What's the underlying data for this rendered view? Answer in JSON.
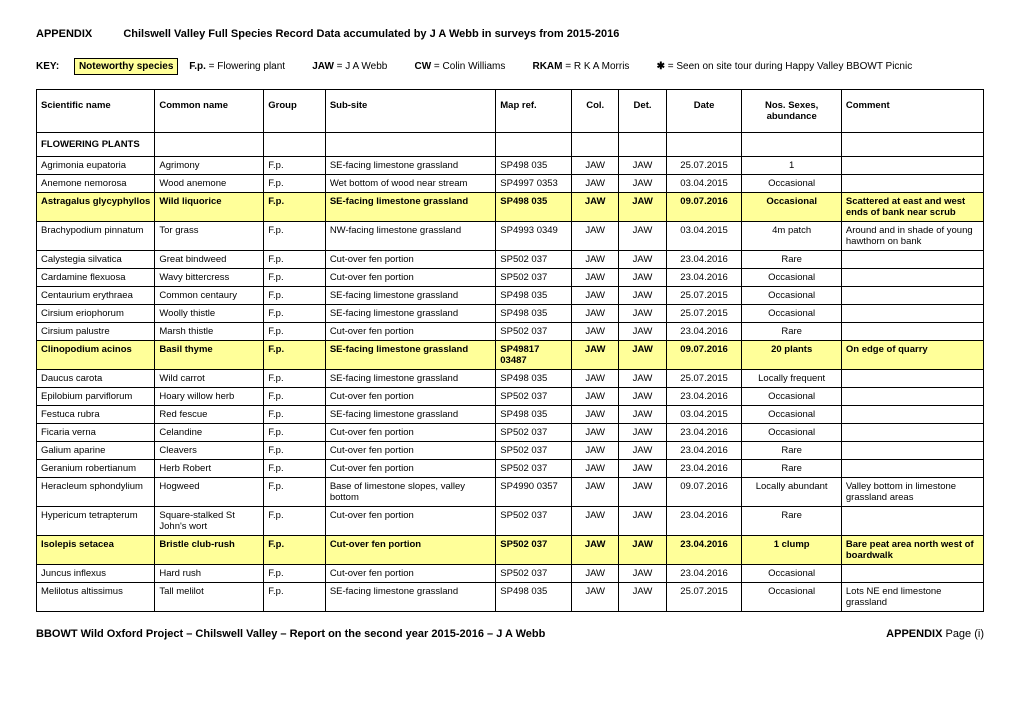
{
  "header": {
    "appendix": "APPENDIX",
    "title": "Chilswell Valley  Full Species Record Data accumulated by J A Webb in surveys from 2015-2016"
  },
  "key": {
    "label": "KEY:",
    "noteworthy": "Noteworthy species",
    "fp_abbr": "F.p.",
    "fp_eq": " =  Flowering plant",
    "jaw_abbr": "JAW",
    "jaw_eq": " = J A Webb",
    "cw_abbr": "CW",
    "cw_eq": " = Colin Williams",
    "rkam_abbr": "RKAM",
    "rkam_eq": " = R K A Morris",
    "flower_symbol": "✱",
    "flower_eq": " = Seen on site tour during Happy Valley BBOWT Picnic"
  },
  "columns": [
    "Scientific name",
    "Common name",
    "Group",
    "Sub-site",
    "Map ref.",
    "Col.",
    "Det.",
    "Date",
    "Nos. Sexes, abundance",
    "Comment"
  ],
  "section": "FLOWERING PLANTS",
  "rows": [
    {
      "sci": "Agrimonia eupatoria",
      "com": "Agrimony",
      "grp": "F.p.",
      "sub": "SE-facing limestone grassland",
      "map": "SP498 035",
      "col": "JAW",
      "det": "JAW",
      "date": "25.07.2015",
      "nos": "1",
      "cmt": "",
      "hl": false
    },
    {
      "sci": "Anemone nemorosa",
      "com": "Wood anemone",
      "grp": "F.p.",
      "sub": "Wet bottom of wood near stream",
      "map": "SP4997 0353",
      "col": "JAW",
      "det": "JAW",
      "date": "03.04.2015",
      "nos": "Occasional",
      "cmt": "",
      "hl": false
    },
    {
      "sci": "Astragalus glycyphyllos",
      "com": "Wild liquorice",
      "grp": "F.p.",
      "sub": "SE-facing limestone grassland",
      "map": "SP498 035",
      "col": "JAW",
      "det": "JAW",
      "date": "09.07.2016",
      "nos": "Occasional",
      "cmt": "Scattered at east and west ends of bank near scrub",
      "hl": true
    },
    {
      "sci": "Brachypodium pinnatum",
      "com": "Tor grass",
      "grp": "F.p.",
      "sub": "NW-facing limestone grassland",
      "map": "SP4993 0349",
      "col": "JAW",
      "det": "JAW",
      "date": "03.04.2015",
      "nos": "4m patch",
      "cmt": "Around and in shade of young hawthorn on bank",
      "hl": false
    },
    {
      "sci": "Calystegia silvatica",
      "com": "Great bindweed",
      "grp": "F.p.",
      "sub": "Cut-over fen portion",
      "map": "SP502 037",
      "col": "JAW",
      "det": "JAW",
      "date": "23.04.2016",
      "nos": "Rare",
      "cmt": "",
      "hl": false
    },
    {
      "sci": "Cardamine flexuosa",
      "com": "Wavy bittercress",
      "grp": "F.p.",
      "sub": "Cut-over fen portion",
      "map": "SP502 037",
      "col": "JAW",
      "det": "JAW",
      "date": "23.04.2016",
      "nos": "Occasional",
      "cmt": "",
      "hl": false
    },
    {
      "sci": "Centaurium erythraea",
      "com": "Common centaury",
      "grp": "F.p.",
      "sub": "SE-facing limestone grassland",
      "map": "SP498 035",
      "col": "JAW",
      "det": "JAW",
      "date": "25.07.2015",
      "nos": "Occasional",
      "cmt": "",
      "hl": false
    },
    {
      "sci": "Cirsium eriophorum",
      "com": "Woolly thistle",
      "grp": "F.p.",
      "sub": "SE-facing limestone grassland",
      "map": "SP498 035",
      "col": "JAW",
      "det": "JAW",
      "date": "25.07.2015",
      "nos": "Occasional",
      "cmt": "",
      "hl": false
    },
    {
      "sci": "Cirsium palustre",
      "com": "Marsh thistle",
      "grp": "F.p.",
      "sub": "Cut-over fen portion",
      "map": "SP502 037",
      "col": "JAW",
      "det": "JAW",
      "date": "23.04.2016",
      "nos": "Rare",
      "cmt": "",
      "hl": false
    },
    {
      "sci": "Clinopodium acinos",
      "com": "Basil thyme",
      "grp": "F.p.",
      "sub": "SE-facing limestone grassland",
      "map": "SP49817 03487",
      "col": "JAW",
      "det": "JAW",
      "date": "09.07.2016",
      "nos": "20 plants",
      "cmt": "On edge of quarry",
      "hl": true
    },
    {
      "sci": "Daucus carota",
      "com": "Wild carrot",
      "grp": "F.p.",
      "sub": "SE-facing limestone grassland",
      "map": "SP498 035",
      "col": "JAW",
      "det": "JAW",
      "date": "25.07.2015",
      "nos": "Locally frequent",
      "cmt": "",
      "hl": false
    },
    {
      "sci": "Epilobium parviflorum",
      "com": "Hoary willow herb",
      "grp": "F.p.",
      "sub": "Cut-over fen portion",
      "map": "SP502 037",
      "col": "JAW",
      "det": "JAW",
      "date": "23.04.2016",
      "nos": "Occasional",
      "cmt": "",
      "hl": false
    },
    {
      "sci": "Festuca rubra",
      "com": "Red fescue",
      "grp": "F.p.",
      "sub": "SE-facing limestone grassland",
      "map": "SP498 035",
      "col": "JAW",
      "det": "JAW",
      "date": "03.04.2015",
      "nos": "Occasional",
      "cmt": "",
      "hl": false
    },
    {
      "sci": "Ficaria verna",
      "com": "Celandine",
      "grp": "F.p.",
      "sub": "Cut-over fen portion",
      "map": "SP502 037",
      "col": "JAW",
      "det": "JAW",
      "date": "23.04.2016",
      "nos": "Occasional",
      "cmt": "",
      "hl": false
    },
    {
      "sci": "Galium aparine",
      "com": "Cleavers",
      "grp": "F.p.",
      "sub": "Cut-over fen portion",
      "map": "SP502 037",
      "col": "JAW",
      "det": "JAW",
      "date": "23.04.2016",
      "nos": "Rare",
      "cmt": "",
      "hl": false
    },
    {
      "sci": "Geranium robertianum",
      "com": "Herb Robert",
      "grp": "F.p.",
      "sub": "Cut-over fen portion",
      "map": "SP502 037",
      "col": "JAW",
      "det": "JAW",
      "date": "23.04.2016",
      "nos": "Rare",
      "cmt": "",
      "hl": false
    },
    {
      "sci": "Heracleum sphondylium",
      "com": "Hogweed",
      "grp": "F.p.",
      "sub": "Base of limestone slopes, valley bottom",
      "map": "SP4990 0357",
      "col": "JAW",
      "det": "JAW",
      "date": "09.07.2016",
      "nos": "Locally abundant",
      "cmt": "Valley bottom in limestone grassland areas",
      "hl": false
    },
    {
      "sci": "Hypericum tetrapterum",
      "com": "Square-stalked St John's wort",
      "grp": "F.p.",
      "sub": "Cut-over fen portion",
      "map": "SP502 037",
      "col": "JAW",
      "det": "JAW",
      "date": "23.04.2016",
      "nos": "Rare",
      "cmt": "",
      "hl": false
    },
    {
      "sci": "Isolepis setacea",
      "com": "Bristle club-rush",
      "grp": "F.p.",
      "sub": "Cut-over fen portion",
      "map": "SP502 037",
      "col": "JAW",
      "det": "JAW",
      "date": "23.04.2016",
      "nos": "1 clump",
      "cmt": "Bare peat area north west of boardwalk",
      "hl": true
    },
    {
      "sci": "Juncus inflexus",
      "com": "Hard rush",
      "grp": "F.p.",
      "sub": "Cut-over fen portion",
      "map": "SP502 037",
      "col": "JAW",
      "det": "JAW",
      "date": "23.04.2016",
      "nos": "Occasional",
      "cmt": "",
      "hl": false
    },
    {
      "sci": "Melilotus altissimus",
      "com": "Tall melilot",
      "grp": "F.p.",
      "sub": "SE-facing limestone grassland",
      "map": "SP498 035",
      "col": "JAW",
      "det": "JAW",
      "date": "25.07.2015",
      "nos": "Occasional",
      "cmt": "Lots NE end limestone grassland",
      "hl": false
    }
  ],
  "footer": {
    "left": "BBOWT Wild Oxford Project  –  Chilswell Valley  –  Report on the second year 2015-2016  –  J A Webb",
    "right_label": "APPENDIX",
    "right_page": "  Page (i)"
  }
}
